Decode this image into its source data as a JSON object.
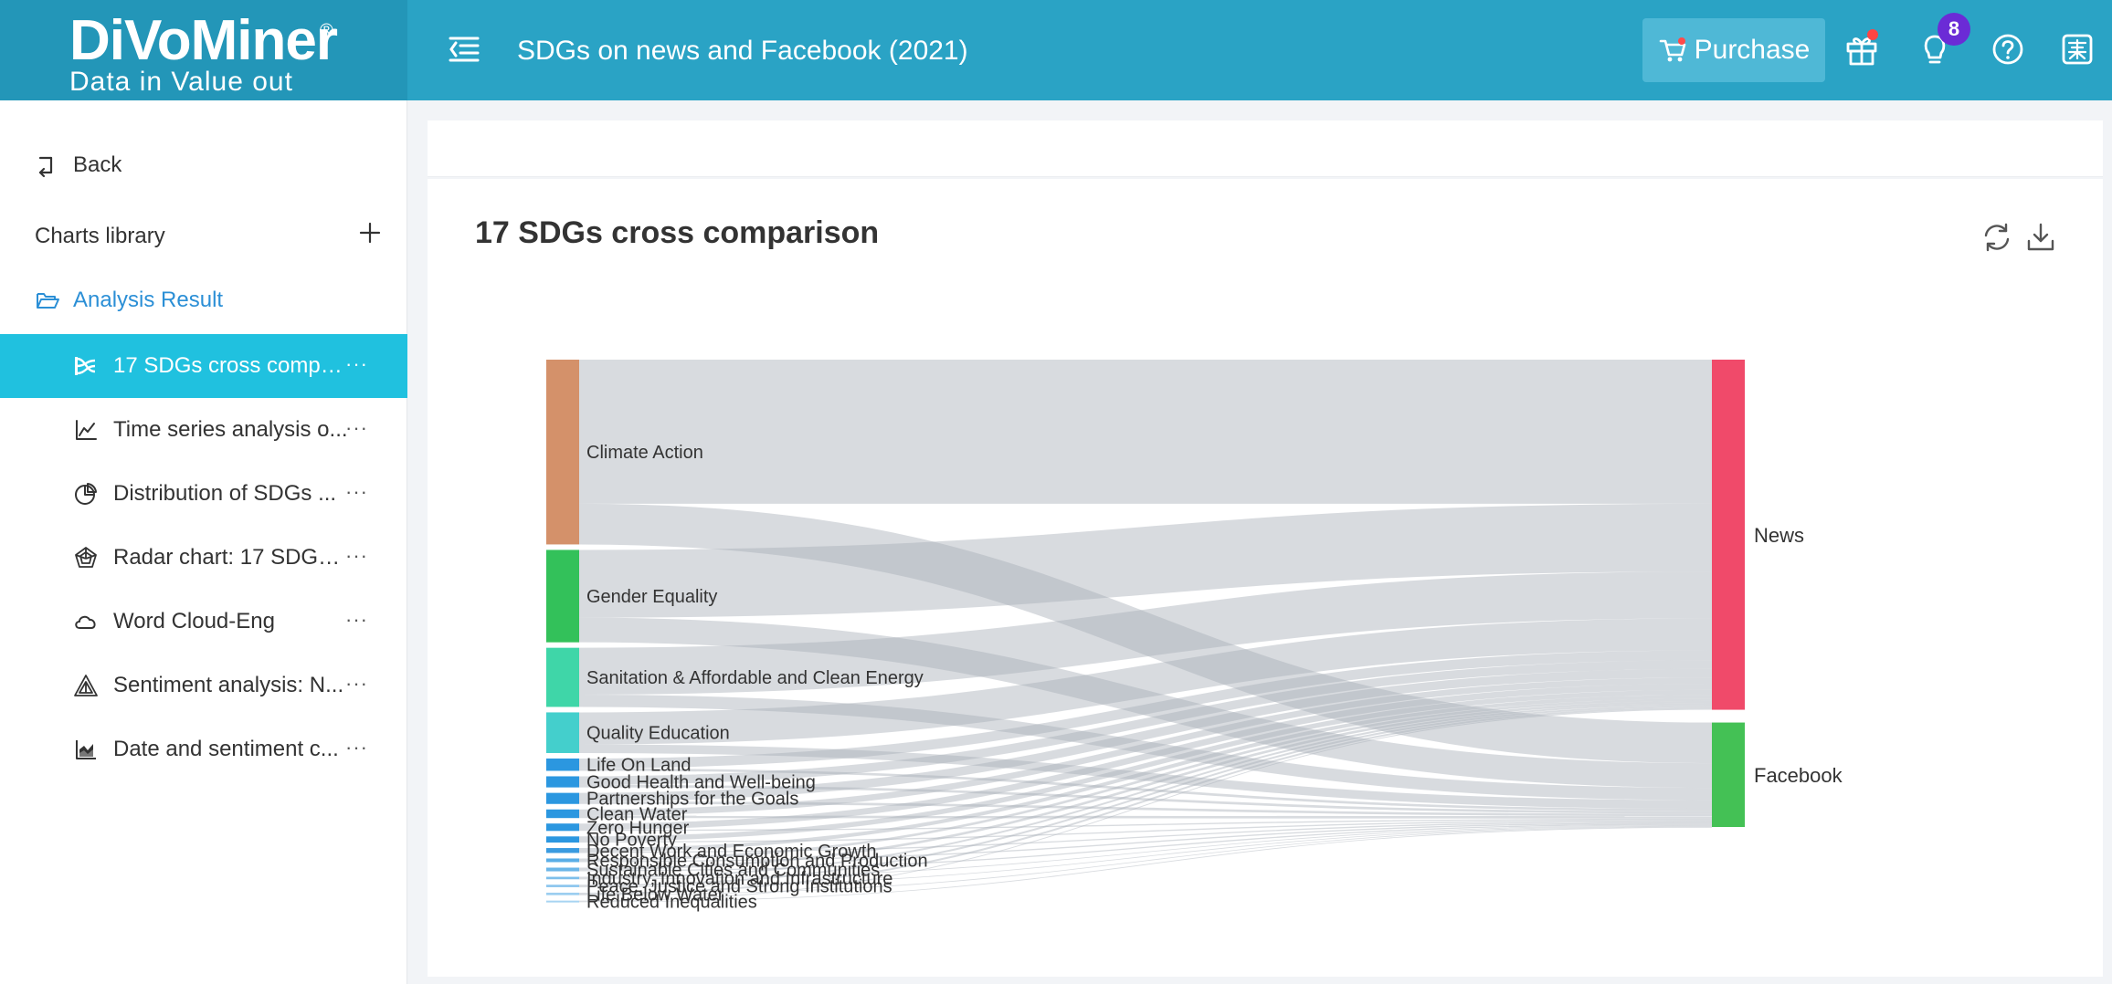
{
  "header": {
    "logo_text": "DiVoMiner",
    "logo_registered": "®",
    "logo_tagline": "Data in  Value out",
    "project_title": "SDGs on news and Facebook (2021)",
    "purchase_label": "Purchase",
    "notification_count": "8",
    "icons": [
      "menu-toggle-icon",
      "cart-icon",
      "gift-icon",
      "lightbulb-icon",
      "help-icon",
      "language-icon"
    ]
  },
  "sidebar": {
    "back_label": "Back",
    "charts_library_label": "Charts library",
    "analysis_result_label": "Analysis Result",
    "charts": [
      {
        "label": "17 SDGs cross compa...",
        "icon": "sankey-icon",
        "active": true
      },
      {
        "label": "Time series analysis o...",
        "icon": "line-chart-icon",
        "active": false
      },
      {
        "label": "Distribution of SDGs ...",
        "icon": "pie-chart-icon",
        "active": false
      },
      {
        "label": "Radar chart: 17 SDGs ...",
        "icon": "radar-chart-icon",
        "active": false
      },
      {
        "label": "Word Cloud-Eng",
        "icon": "cloud-icon",
        "active": false
      },
      {
        "label": "Sentiment analysis: N...",
        "icon": "sentiment-icon",
        "active": false
      },
      {
        "label": "Date and sentiment c...",
        "icon": "area-chart-icon",
        "active": false
      }
    ],
    "more_label": "···"
  },
  "main": {
    "chart_title": "17 SDGs cross comparison"
  },
  "chart_data": {
    "type": "sankey",
    "title": "17 SDGs cross comparison",
    "sources": [
      {
        "name": "Climate Action",
        "value": 150,
        "color": "#d4916a"
      },
      {
        "name": "Gender Equality",
        "value": 75,
        "color": "#33c15a"
      },
      {
        "name": "Sanitation & Affordable and Clean Energy",
        "value": 48,
        "color": "#3fd6a8"
      },
      {
        "name": "Quality Education",
        "value": 33,
        "color": "#44cfcc"
      },
      {
        "name": "Life On Land",
        "value": 10,
        "color": "#2b97e0"
      },
      {
        "name": "Good Health and Well-being",
        "value": 9,
        "color": "#2b97e0"
      },
      {
        "name": "Partnerships for the Goals",
        "value": 9,
        "color": "#2b97e0"
      },
      {
        "name": "Clean Water",
        "value": 7,
        "color": "#2b97e0"
      },
      {
        "name": "Zero Hunger",
        "value": 6,
        "color": "#2b97e0"
      },
      {
        "name": "No Poverty",
        "value": 5,
        "color": "#2b97e0"
      },
      {
        "name": "Decent Work and Economic Growth",
        "value": 4,
        "color": "#3a9be0"
      },
      {
        "name": "Responsible Consumption and Production",
        "value": 3,
        "color": "#5aaee6"
      },
      {
        "name": "Sustainable Cities and Communities",
        "value": 3,
        "color": "#6bb6e8"
      },
      {
        "name": "Industry, Innovation and Infrastructure",
        "value": 2,
        "color": "#7dbfeb"
      },
      {
        "name": "Peace, Justice and Strong Institutions",
        "value": 2,
        "color": "#8cc6ee"
      },
      {
        "name": "Life Below Water",
        "value": 2,
        "color": "#9ccef0"
      },
      {
        "name": "Reduced Inequalities",
        "value": 1,
        "color": "#a8d4f2"
      }
    ],
    "targets": [
      {
        "name": "News",
        "color": "#f04a6a"
      },
      {
        "name": "Facebook",
        "color": "#44c155"
      }
    ],
    "links": [
      {
        "source": "Climate Action",
        "target": "News",
        "value": 117
      },
      {
        "source": "Climate Action",
        "target": "Facebook",
        "value": 33
      },
      {
        "source": "Gender Equality",
        "target": "News",
        "value": 55
      },
      {
        "source": "Gender Equality",
        "target": "Facebook",
        "value": 20
      },
      {
        "source": "Sanitation & Affordable and Clean Energy",
        "target": "News",
        "value": 38
      },
      {
        "source": "Sanitation & Affordable and Clean Energy",
        "target": "Facebook",
        "value": 10
      },
      {
        "source": "Quality Education",
        "target": "News",
        "value": 26
      },
      {
        "source": "Quality Education",
        "target": "Facebook",
        "value": 7
      },
      {
        "source": "Life On Land",
        "target": "News",
        "value": 8
      },
      {
        "source": "Life On Land",
        "target": "Facebook",
        "value": 2
      },
      {
        "source": "Good Health and Well-being",
        "target": "News",
        "value": 7
      },
      {
        "source": "Good Health and Well-being",
        "target": "Facebook",
        "value": 2
      },
      {
        "source": "Partnerships for the Goals",
        "target": "News",
        "value": 7
      },
      {
        "source": "Partnerships for the Goals",
        "target": "Facebook",
        "value": 2
      },
      {
        "source": "Clean Water",
        "target": "News",
        "value": 5
      },
      {
        "source": "Clean Water",
        "target": "Facebook",
        "value": 2
      },
      {
        "source": "Zero Hunger",
        "target": "News",
        "value": 5
      },
      {
        "source": "Zero Hunger",
        "target": "Facebook",
        "value": 1
      },
      {
        "source": "No Poverty",
        "target": "News",
        "value": 4
      },
      {
        "source": "No Poverty",
        "target": "Facebook",
        "value": 1
      },
      {
        "source": "Decent Work and Economic Growth",
        "target": "News",
        "value": 3
      },
      {
        "source": "Decent Work and Economic Growth",
        "target": "Facebook",
        "value": 1
      },
      {
        "source": "Responsible Consumption and Production",
        "target": "News",
        "value": 2
      },
      {
        "source": "Responsible Consumption and Production",
        "target": "Facebook",
        "value": 1
      },
      {
        "source": "Sustainable Cities and Communities",
        "target": "News",
        "value": 2
      },
      {
        "source": "Sustainable Cities and Communities",
        "target": "Facebook",
        "value": 1
      },
      {
        "source": "Industry, Innovation and Infrastructure",
        "target": "News",
        "value": 1.5
      },
      {
        "source": "Industry, Innovation and Infrastructure",
        "target": "Facebook",
        "value": 0.5
      },
      {
        "source": "Peace, Justice and Strong Institutions",
        "target": "News",
        "value": 1.5
      },
      {
        "source": "Peace, Justice and Strong Institutions",
        "target": "Facebook",
        "value": 0.5
      },
      {
        "source": "Life Below Water",
        "target": "News",
        "value": 1.5
      },
      {
        "source": "Life Below Water",
        "target": "Facebook",
        "value": 0.5
      },
      {
        "source": "Reduced Inequalities",
        "target": "News",
        "value": 0.7
      },
      {
        "source": "Reduced Inequalities",
        "target": "Facebook",
        "value": 0.3
      }
    ]
  }
}
